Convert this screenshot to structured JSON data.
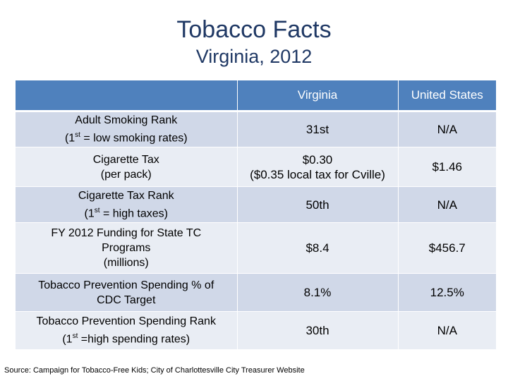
{
  "title": "Tobacco Facts",
  "subtitle": "Virginia, 2012",
  "table": {
    "headers": [
      "",
      "Virginia",
      "United States"
    ],
    "rows": [
      {
        "label_lines": [
          "Adult Smoking Rank",
          "(1st = low smoking rates)"
        ],
        "virginia_lines": [
          "31st"
        ],
        "us": "N/A"
      },
      {
        "label_lines": [
          "Cigarette Tax",
          "(per pack)"
        ],
        "virginia_lines": [
          "$0.30",
          "($0.35 local tax for Cville)"
        ],
        "us": "$1.46"
      },
      {
        "label_lines": [
          "Cigarette Tax Rank",
          "(1st = high taxes)"
        ],
        "virginia_lines": [
          "50th"
        ],
        "us": "N/A"
      },
      {
        "label_lines": [
          "FY 2012 Funding for State TC",
          "Programs",
          "(millions)"
        ],
        "virginia_lines": [
          "$8.4"
        ],
        "us": "$456.7"
      },
      {
        "label_lines": [
          "Tobacco Prevention Spending % of",
          "CDC Target"
        ],
        "virginia_lines": [
          "8.1%"
        ],
        "us": "12.5%"
      },
      {
        "label_lines": [
          "Tobacco Prevention Spending Rank",
          "(1st =high spending rates)"
        ],
        "virginia_lines": [
          "30th"
        ],
        "us": "N/A"
      }
    ]
  },
  "source": "Source: Campaign for Tobacco-Free Kids; City of Charlottesville City Treasurer Website"
}
